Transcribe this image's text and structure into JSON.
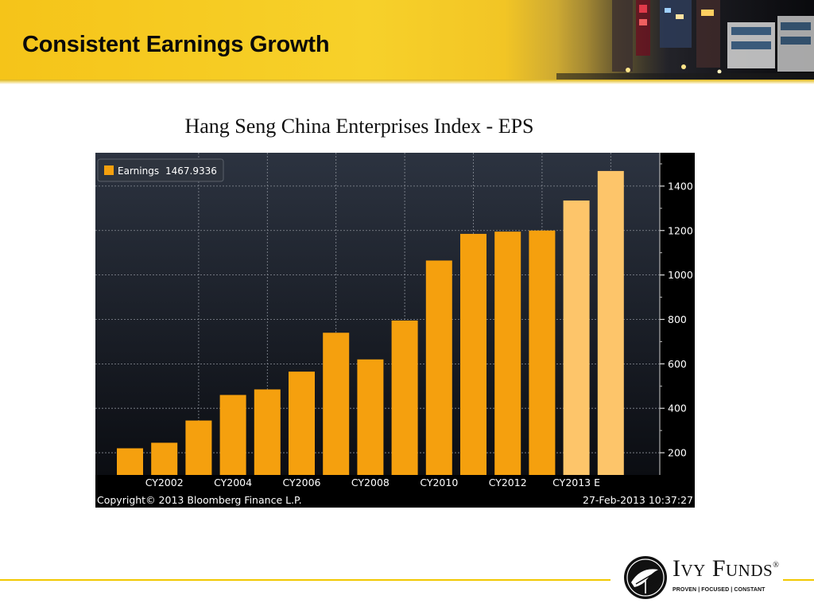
{
  "slide": {
    "title": "Consistent Earnings Growth",
    "chart_heading": "Hang Seng China Enterprises Index - EPS"
  },
  "chart_data": {
    "type": "bar",
    "title": "Hang Seng China Enterprises Index - EPS",
    "categories": [
      "",
      "CY2002",
      "",
      "CY2004",
      "",
      "CY2006",
      "",
      "CY2008",
      "",
      "CY2010",
      "",
      "CY2012",
      "",
      "CY2013 E",
      ""
    ],
    "category_labels": [
      "CY2002",
      "CY2004",
      "CY2006",
      "CY2008",
      "CY2010",
      "CY2012",
      "CY2013 E"
    ],
    "series": [
      {
        "name": "Earnings",
        "values": [
          220,
          245,
          345,
          460,
          485,
          565,
          740,
          620,
          795,
          1065,
          1185,
          1195,
          1200,
          1335,
          1467.9336
        ],
        "colors": [
          "#f5a00e",
          "#f5a00e",
          "#f5a00e",
          "#f5a00e",
          "#f5a00e",
          "#f5a00e",
          "#f5a00e",
          "#f5a00e",
          "#f5a00e",
          "#f5a00e",
          "#f5a00e",
          "#f5a00e",
          "#f5a00e",
          "#fdc56a",
          "#fdc56a"
        ]
      }
    ],
    "legend": {
      "label": "Earnings",
      "value": "1467.9336",
      "placement": "top-left",
      "swatch_color": "#f5a00e"
    },
    "ylim": [
      100,
      1550
    ],
    "yticks": [
      200,
      400,
      600,
      800,
      1000,
      1200,
      1400
    ],
    "y_axis_side": "right",
    "grid": true,
    "xlabel": "",
    "ylabel": "",
    "footer_left": "Copyright© 2013 Bloomberg Finance L.P.",
    "footer_right": "27-Feb-2013 10:37:27"
  },
  "logo": {
    "name": "Ivy Funds",
    "tagline": "PROVEN | FOCUSED | CONSTANT",
    "registered_mark": "®"
  }
}
